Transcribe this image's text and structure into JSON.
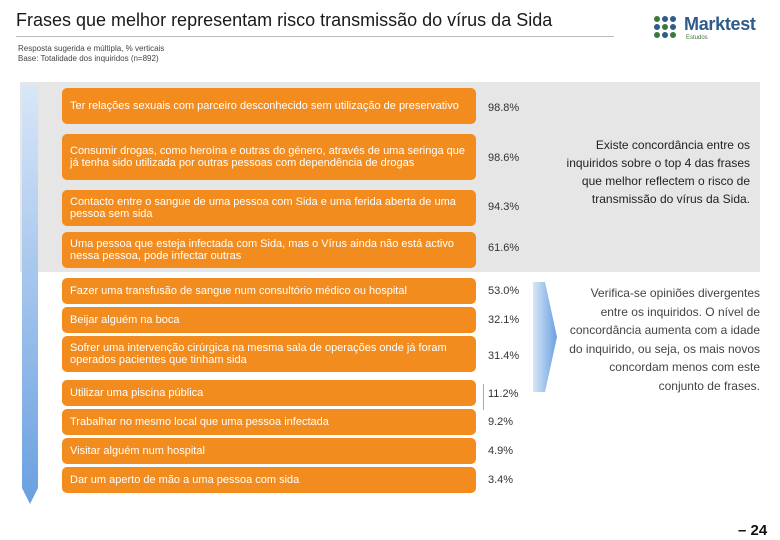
{
  "header": {
    "title": "Frases que melhor representam risco transmissão do vírus da Sida",
    "subtitle_line1": "Resposta sugerida e múltipla, % verticais",
    "subtitle_line2": "Base: Totalidade dos inquiridos (n=892)"
  },
  "logo": {
    "text": "Marktest",
    "sub": "Estudos"
  },
  "colors": {
    "bar": "#f28c1e",
    "band": "#e6e6e6",
    "arrow": "#8ab4e8",
    "brand": "#2e5b8c"
  },
  "chart_data": {
    "type": "bar",
    "orientation": "horizontal",
    "categories": [
      "Ter relações sexuais com parceiro desconhecido sem utilização de preservativo",
      "Consumir drogas, como heroína e outras do género, através de uma seringa que já tenha sido utilizada por outras pessoas com dependência de drogas",
      "Contacto entre o sangue de uma pessoa com Sida e uma ferida aberta de uma pessoa sem sida",
      "Uma pessoa que esteja infectada com Sida, mas o Vírus ainda não está activo nessa pessoa, pode infectar outras",
      "Fazer uma transfusão de sangue num consultório médico ou hospital",
      "Beijar alguém na boca",
      "Sofrer uma intervenção cirúrgica na mesma sala de operações onde já foram operados pacientes que tinham sida",
      "Utilizar uma piscina pública",
      "Trabalhar no mesmo local que uma pessoa infectada",
      "Visitar alguém num hospital",
      "Dar um aperto de mão a uma pessoa com sida"
    ],
    "values": [
      98.8,
      98.6,
      94.3,
      61.6,
      53.0,
      32.1,
      31.4,
      11.2,
      9.2,
      4.9,
      3.4
    ],
    "value_labels": [
      "98.8%",
      "98.6%",
      "94.3%",
      "61.6%",
      "53.0%",
      "32.1%",
      "31.4%",
      "11.2%",
      "9.2%",
      "4.9%",
      "3.4%"
    ],
    "title": "Frases que melhor representam risco transmissão do vírus da Sida"
  },
  "notes": {
    "top4": "Existe concordância entre os inquiridos sobre o top 4 das frases que melhor reflectem o risco de transmissão do vírus da Sida.",
    "divergent": "Verifica-se opiniões divergentes entre os inquiridos. O nível de concordância aumenta com a idade do inquirido, ou seja, os mais novos concordam menos com este conjunto de frases."
  },
  "page_number": "– 24"
}
